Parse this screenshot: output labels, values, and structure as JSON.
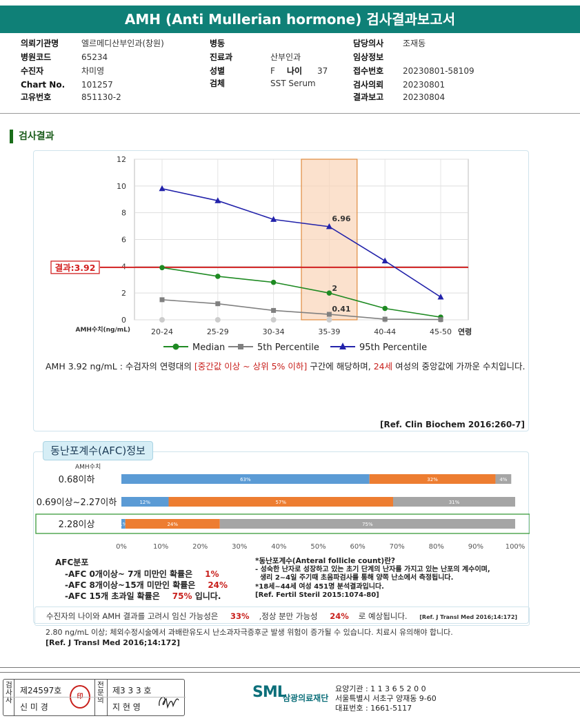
{
  "title": "AMH (Anti Mullerian hormone) 검사결과보고서",
  "patient": {
    "col1": [
      {
        "label": "의뢰기관명",
        "value": "엘르메디산부인과(창원)"
      },
      {
        "label": "병원코드",
        "value": "65234"
      },
      {
        "label": "수진자",
        "value": "차미영"
      },
      {
        "label": "Chart No.",
        "value": "101257"
      },
      {
        "label": "고유번호",
        "value": "851130-2"
      }
    ],
    "col2": [
      {
        "label": "병동",
        "value": ""
      },
      {
        "label": "진료과",
        "value": "산부인과"
      },
      {
        "label": "성별",
        "value": "F"
      },
      {
        "label": "검체",
        "value": "SST Serum"
      }
    ],
    "age_label": "나이",
    "age_value": "37",
    "col3": [
      {
        "label": "담당의사",
        "value": "조재동"
      },
      {
        "label": "임상정보",
        "value": ""
      },
      {
        "label": "접수번호",
        "value": "20230801-58109"
      },
      {
        "label": "검사의뢰",
        "value": "20230801"
      },
      {
        "label": "결과보고",
        "value": "20230804"
      }
    ]
  },
  "section_title": "검사결과",
  "chart_data": {
    "type": "line",
    "categories": [
      "20-24",
      "25-29",
      "30-34",
      "35-39",
      "40-44",
      "45-50"
    ],
    "x_suffix_label": "연령",
    "y_axis_label": "AMH수치(ng/mL)",
    "ylim": [
      0,
      12
    ],
    "yticks": [
      "0",
      "2",
      "4",
      "6",
      "8",
      "10",
      "12"
    ],
    "grid": true,
    "legend_position": "bottom",
    "highlight_category": "35-39",
    "result_line": {
      "label": "결과:3.92",
      "value": 3.92
    },
    "series": [
      {
        "name": "Median",
        "color": "#1e8a22",
        "marker": "circle",
        "values": [
          3.9,
          3.25,
          2.8,
          2,
          0.85,
          0.2
        ]
      },
      {
        "name": "5th Percentile",
        "color": "#808080",
        "marker": "square",
        "values": [
          1.5,
          1.2,
          0.7,
          0.41,
          0.05,
          0.02
        ]
      },
      {
        "name": "95th Percentile",
        "color": "#2222aa",
        "marker": "triangle",
        "values": [
          9.8,
          8.9,
          7.5,
          6.96,
          4.4,
          1.7
        ]
      }
    ],
    "value_labels": [
      "6.96",
      "2",
      "0.41"
    ]
  },
  "interp": {
    "p1": "AMH  3.92 ng/mL : 수검자의 연령대의 ",
    "p2": "[중간값 이상 ~ 상위 5% 이하]",
    "p3": " 구간에 해당하며, ",
    "p4": "24세",
    "p5": " 여성의 중앙값에 가까운 수치입니다."
  },
  "ref1": "[Ref. Clin Biochem 2016:260-7]",
  "afc": {
    "title": "동난포계수(AFC)정보",
    "header": "AMH수치",
    "colors": [
      "#5b9bd5",
      "#ed7d31",
      "#a5a5a5"
    ],
    "rows": [
      {
        "label": "0.68이하",
        "values": [
          63,
          32,
          4
        ],
        "labels": [
          "63%",
          "32%",
          "4%"
        ],
        "highlight": false
      },
      {
        "label": "0.69이상~2.27이하",
        "values": [
          12,
          57,
          31
        ],
        "labels": [
          "12%",
          "57%",
          "31%"
        ],
        "highlight": false
      },
      {
        "label": "2.28이상",
        "values": [
          1,
          24,
          75
        ],
        "labels": [
          "1%",
          "24%",
          "75%"
        ],
        "highlight": true
      }
    ],
    "xticks": [
      "0%",
      "10%",
      "20%",
      "30%",
      "40%",
      "50%",
      "60%",
      "70%",
      "80%",
      "90%",
      "100%"
    ],
    "dist_title": "AFC분포",
    "dist": [
      {
        "text": "-AFC  0개이상~ 7개 미만인 확률은",
        "value": "1%",
        "suffix": ""
      },
      {
        "text": "-AFC  8개이상~15개 미만인 확률은",
        "value": "24%",
        "suffix": ""
      },
      {
        "text": "-AFC  15개 초과일 확률은",
        "value": "75%",
        "suffix": " 입니다."
      }
    ],
    "note_lines": [
      "*동난포계수(Anteral follicle count)란?",
      "- 성숙한 난자로 성장하고 있는 초기 단계의 난자를 가지고 있는 난포의 계수이며,",
      "  생리 2~4일 주기때 초음파검사를 통해 양쪽 난소에서 측정됩니다.",
      "*18세~44세 여성 451명 분석결과입니다.",
      "[Ref. Fertil Steril 2015:1074-80]"
    ]
  },
  "pregnancy": {
    "t1": "수진자의 나이와 AMH 결과를 고려시 임신 가능성은",
    "v1": "33%",
    "t2": ",정상 분만 가능성",
    "v2": "24%",
    "t3": "로 예상됩니다.",
    "ref": "[Ref. J Transl Med 2016;14:172]"
  },
  "note": "2.80  ng/mL  이상; 체외수정시술에서 과배란유도시 난소과자극증후군 발생 위험이 증가될 수 있습니다. 치료시 유의해야 합니다.",
  "ref3": "[Ref. J Transl Med 2016;14:172]",
  "footer": {
    "tester_label": [
      "검",
      "사",
      "자"
    ],
    "tester_no": "제24597호",
    "tester_name": "신 미 경",
    "doctor_label": [
      "전",
      "문",
      "의"
    ],
    "doctor_no": "제3 3 3 호",
    "doctor_name": "지 현 영",
    "logo": "SML",
    "org_name": "삼광의료재단",
    "org_lines": [
      "요양기관 : 1 1 3 6 5 2 0 0",
      "서울특별시 서초구 양재동 9-60",
      "대표번호 : 1661-5117"
    ]
  }
}
